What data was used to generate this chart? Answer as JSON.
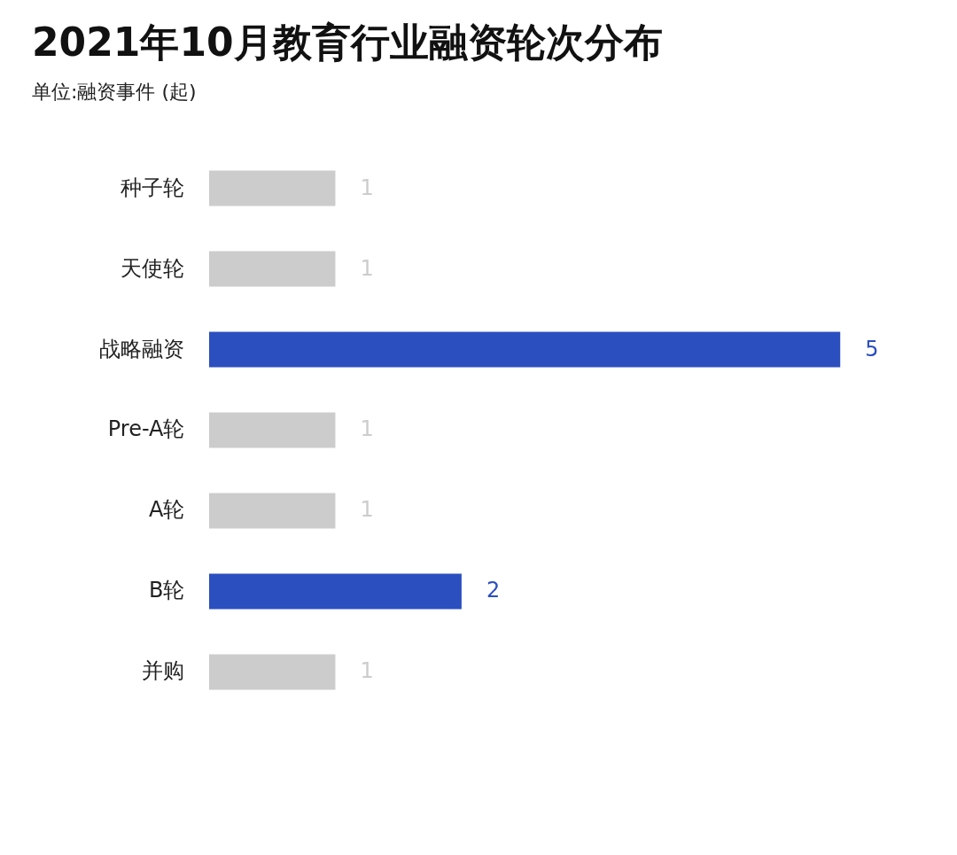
{
  "chart_data": {
    "type": "bar",
    "orientation": "horizontal",
    "title": "2021年10月教育行业融资轮次分布",
    "subtitle": "单位:融资事件 (起)",
    "categories": [
      "种子轮",
      "天使轮",
      "战略融资",
      "Pre-A轮",
      "A轮",
      "B轮",
      "并购"
    ],
    "values": [
      1,
      1,
      5,
      1,
      1,
      2,
      1
    ],
    "colors": [
      "#cccccc",
      "#cccccc",
      "#2b4fbf",
      "#cccccc",
      "#cccccc",
      "#2b4fbf",
      "#cccccc"
    ],
    "data_labels": true,
    "grid": false
  }
}
